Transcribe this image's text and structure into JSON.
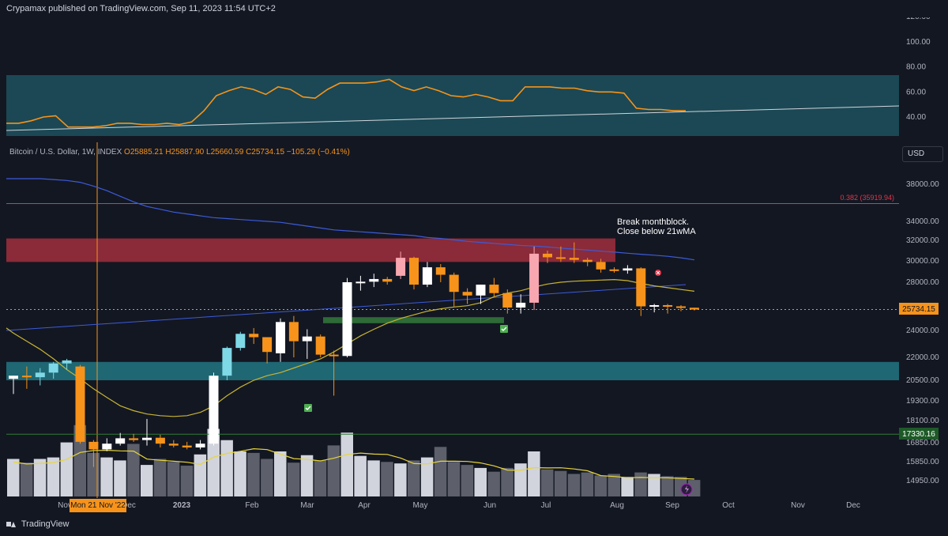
{
  "header": {
    "text": "Crypamax published on TradingView.com, Sep 11, 2023 11:54 UTC+2"
  },
  "symbol": {
    "name": "Bitcoin / U.S. Dollar, 1W, INDEX",
    "ohlc": "O25885.21 H25887.90 L25660.59 C25734.15 −105.29 (−0.41%)"
  },
  "currency_button": "USD",
  "annotation": {
    "line1": "Break monthblock.",
    "line2": "Close below 21wMA"
  },
  "fib_label": "0.382 (35919.94)",
  "price_labels": {
    "last": "25734.15",
    "level": "17330.16"
  },
  "cursor_date": "Mon 21 Nov '22",
  "footer": {
    "brand": "TradingView"
  },
  "colors": {
    "bg": "#131722",
    "orange": "#f7931a",
    "teal": "#1f5a66",
    "red_zone": "#8b2a38",
    "green_zone": "#2e6b37",
    "ma_blue": "#3d5bd8",
    "ma_yellow": "#c8b432"
  },
  "chart_data": [
    {
      "type": "line",
      "title": "",
      "y_axis_ticks": [
        "120.00",
        "100.00",
        "80.00",
        "60.00",
        "40.00"
      ],
      "ylim": [
        20,
        125
      ],
      "series": [
        {
          "values": [
            35,
            35,
            37,
            40,
            41,
            32,
            32,
            32,
            33,
            35,
            35,
            34,
            34,
            35,
            34,
            36,
            45,
            57,
            61,
            64,
            62,
            58,
            64,
            62,
            56,
            55,
            62,
            67,
            67,
            67,
            68,
            70,
            64,
            61,
            64,
            61,
            57,
            56,
            58,
            56,
            53,
            53,
            64,
            64,
            64,
            63,
            63,
            61,
            60,
            60,
            59,
            47,
            46,
            46,
            45,
            45
          ]
        }
      ]
    },
    {
      "type": "candlestick",
      "title": "",
      "y_axis_ticks": [
        "38000.00",
        "34000.00",
        "32000.00",
        "30000.00",
        "28000.00",
        "24000.00",
        "22000.00",
        "20500.00",
        "19300.00",
        "18100.00",
        "16850.00",
        "15850.00",
        "14950.00"
      ],
      "x_axis_labels": [
        "Nov",
        "Dec",
        "2023",
        "Feb",
        "Mar",
        "Apr",
        "May",
        "Jun",
        "Jul",
        "Aug",
        "Sep",
        "Oct",
        "Nov",
        "Dec"
      ],
      "candles": [
        [
          20595,
          20800,
          19700,
          20800
        ],
        [
          20800,
          21400,
          20000,
          20700
        ],
        [
          20700,
          21300,
          20200,
          21000
        ],
        [
          21000,
          21700,
          20600,
          21600
        ],
        [
          21600,
          21900,
          21200,
          21800
        ],
        [
          21400,
          21500,
          16800,
          16900
        ],
        [
          16900,
          17000,
          15600,
          16500
        ],
        [
          16500,
          17100,
          16400,
          16800
        ],
        [
          16800,
          17400,
          16700,
          17100
        ],
        [
          17100,
          17350,
          16900,
          17000
        ],
        [
          17000,
          18200,
          16700,
          17130
        ],
        [
          17130,
          17300,
          16600,
          16800
        ],
        [
          16800,
          17000,
          16600,
          16700
        ],
        [
          16700,
          16900,
          16500,
          16600
        ],
        [
          16600,
          17000,
          16500,
          16800
        ],
        [
          16800,
          21000,
          16700,
          20800
        ],
        [
          20800,
          22800,
          20500,
          22700
        ],
        [
          22700,
          23900,
          22500,
          23750
        ],
        [
          23750,
          24200,
          23000,
          23500
        ],
        [
          23500,
          23500,
          21600,
          22400
        ],
        [
          22300,
          25000,
          21700,
          24700
        ],
        [
          24700,
          25200,
          22000,
          23200
        ],
        [
          23200,
          24100,
          21900,
          23550
        ],
        [
          23550,
          23700,
          22000,
          22200
        ],
        [
          22200,
          22500,
          19600,
          22100
        ],
        [
          22100,
          28400,
          22000,
          28000
        ],
        [
          28000,
          28600,
          27300,
          28050
        ],
        [
          28050,
          28800,
          27600,
          28300
        ],
        [
          28300,
          28500,
          27800,
          28050
        ],
        [
          28600,
          30900,
          28300,
          30300
        ],
        [
          30300,
          30400,
          27400,
          27800
        ],
        [
          27800,
          29900,
          27600,
          29400
        ],
        [
          29400,
          29700,
          28000,
          28700
        ],
        [
          28700,
          28900,
          26000,
          27200
        ],
        [
          27200,
          27500,
          26200,
          26900
        ],
        [
          26900,
          27800,
          26200,
          27800
        ],
        [
          27800,
          28400,
          26800,
          27100
        ],
        [
          27100,
          27400,
          25400,
          25900
        ],
        [
          25900,
          27000,
          25400,
          26300
        ],
        [
          26300,
          31400,
          25700,
          30700
        ],
        [
          30700,
          31000,
          29800,
          30350
        ],
        [
          30350,
          31400,
          29900,
          30300
        ],
        [
          30300,
          31800,
          29800,
          30100
        ],
        [
          30100,
          30300,
          29500,
          29900
        ],
        [
          29900,
          30200,
          28900,
          29200
        ],
        [
          29200,
          29400,
          28900,
          29100
        ],
        [
          29100,
          29600,
          28800,
          29300
        ],
        [
          29300,
          29400,
          25200,
          26000
        ],
        [
          26000,
          26200,
          25500,
          26100
        ],
        [
          26100,
          26200,
          25400,
          26000
        ],
        [
          26000,
          26100,
          25600,
          25900
        ],
        [
          25885.21,
          25887.9,
          25660.59,
          25734.15
        ]
      ],
      "volume": [
        50,
        45,
        50,
        52,
        72,
        95,
        58,
        52,
        48,
        70,
        42,
        50,
        46,
        41,
        56,
        90,
        75,
        60,
        58,
        50,
        60,
        45,
        55,
        48,
        68,
        85,
        54,
        48,
        46,
        44,
        48,
        52,
        66,
        46,
        42,
        38,
        33,
        38,
        44,
        60,
        36,
        34,
        30,
        32,
        28,
        30,
        26,
        32,
        30,
        27,
        26,
        22
      ],
      "overlays": {
        "blue_ma": {
          "values": [
            38600,
            38600,
            38600,
            38500,
            38400,
            38200,
            37800,
            37300,
            36700,
            36100,
            35600,
            35300,
            35000,
            34800,
            34600,
            34400,
            34300,
            34200,
            34100,
            34000,
            33900,
            33700,
            33500,
            33300,
            33100,
            33000,
            32900,
            32800,
            32700,
            32600,
            32500,
            32300,
            32200,
            32050,
            31900,
            31800,
            31700,
            31600,
            31500,
            31450,
            31350,
            31250,
            31150,
            31050,
            30950,
            30850,
            30750,
            30650,
            30550,
            30450,
            30300,
            30100
          ]
        },
        "yellow_ma": {
          "values": [
            23800,
            23200,
            22600,
            21900,
            21200,
            20600,
            20000,
            19500,
            19000,
            18700,
            18500,
            18400,
            18350,
            18400,
            18600,
            19000,
            19600,
            20100,
            20500,
            20800,
            21000,
            21300,
            21600,
            21900,
            22400,
            23000,
            23600,
            24100,
            24600,
            25000,
            25300,
            25600,
            25800,
            25950,
            26050,
            26300,
            26800,
            27100,
            27300,
            27600,
            27850,
            28000,
            28100,
            28150,
            28200,
            28250,
            28150,
            27900,
            27700,
            27550,
            27400,
            27250
          ]
        }
      },
      "zones": [
        {
          "name": "red monthblock",
          "from": 29900,
          "to": 32200
        },
        {
          "name": "green demand",
          "from": 24600,
          "to": 25100
        },
        {
          "name": "teal support",
          "from": 20500,
          "to": 21700
        }
      ],
      "hlines": [
        {
          "label": "0.382 (35919.94)",
          "value": 35919.94
        },
        {
          "label": "17330.16",
          "value": 17330.16
        }
      ],
      "last_price": 25734.15
    }
  ]
}
